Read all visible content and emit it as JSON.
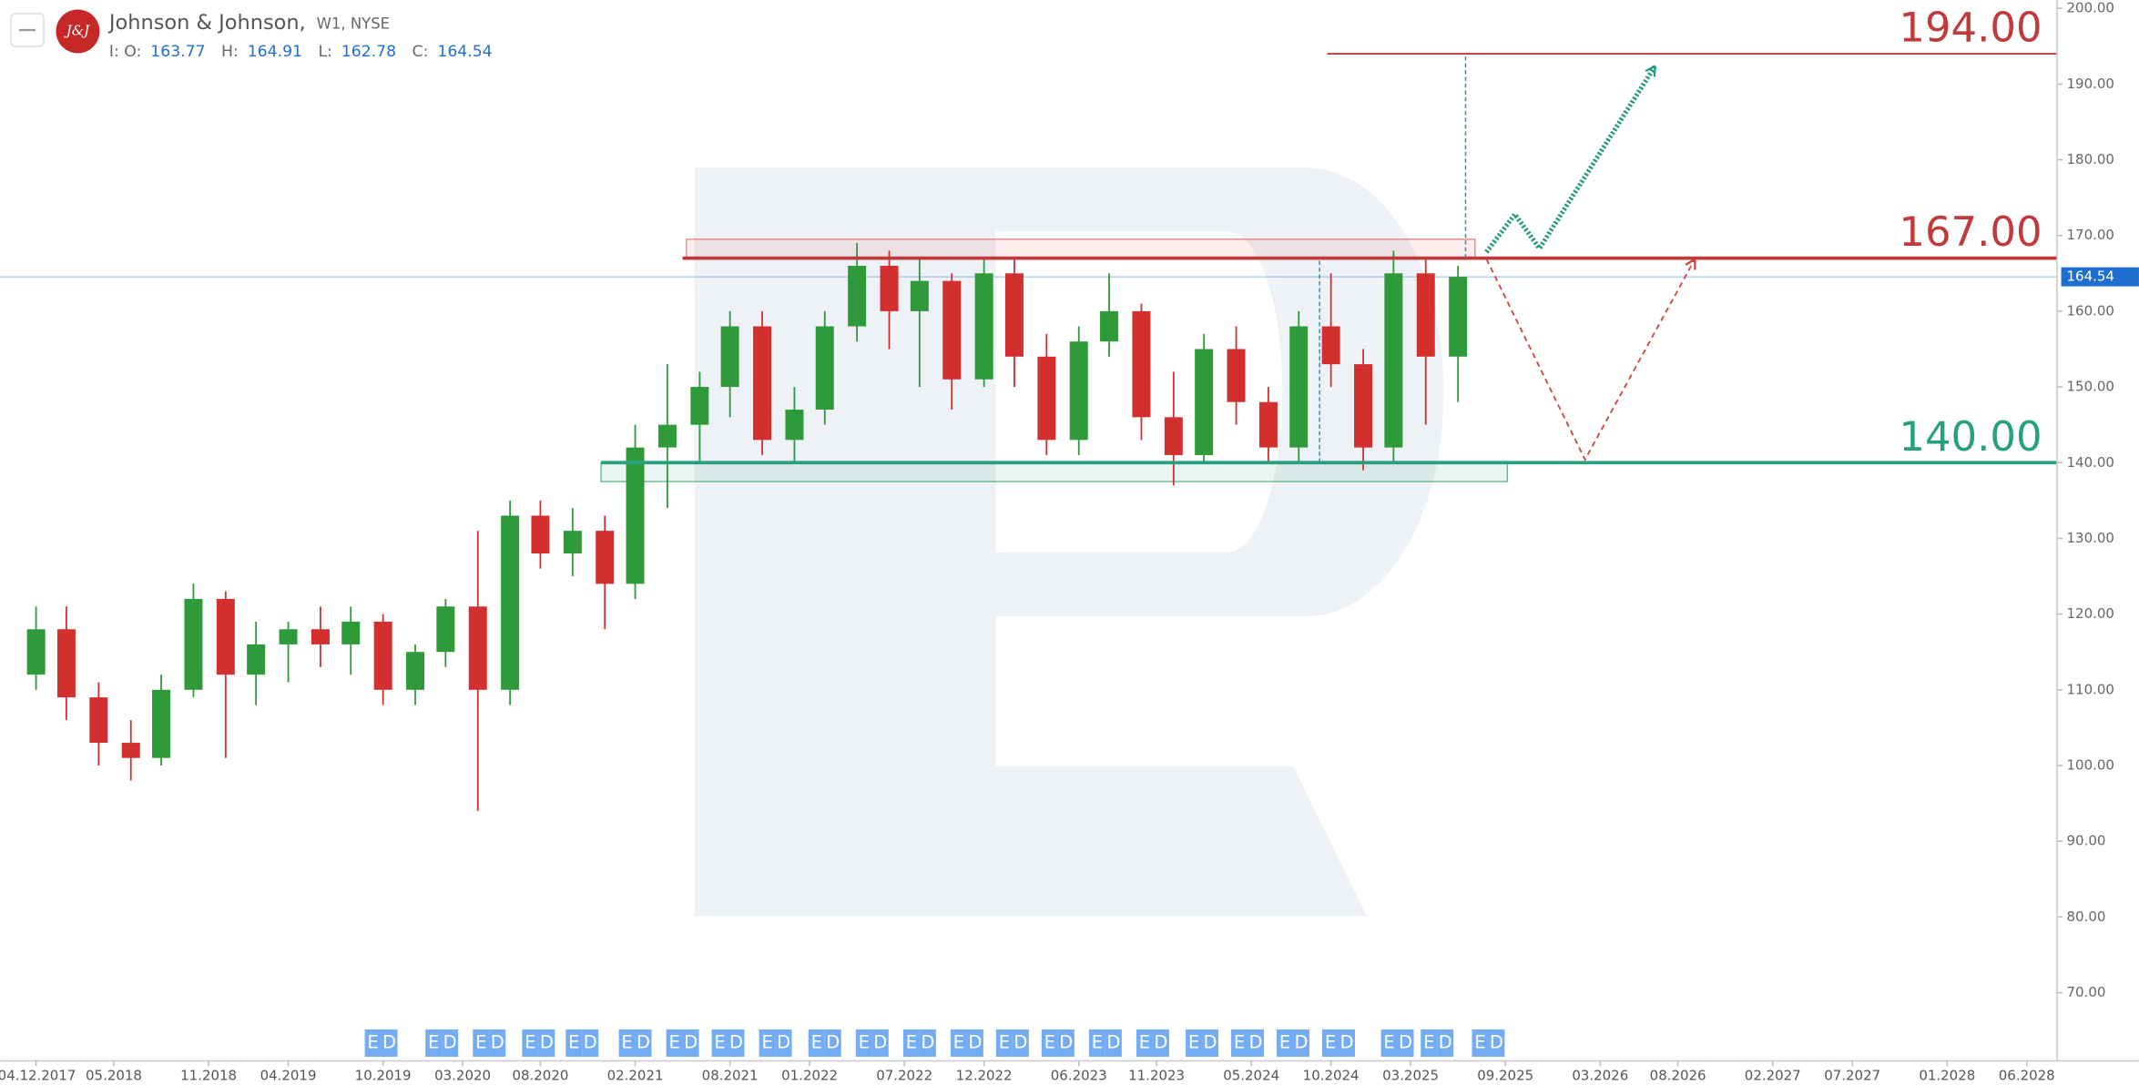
{
  "chart_data": {
    "type": "candlestick",
    "title": "Johnson & Johnson,",
    "subtitle": "W1, NYSE",
    "logo_text": "J&J",
    "ohlc_header": {
      "open_label": "I: O:",
      "open": 163.77,
      "high_label": "H:",
      "high": 164.91,
      "low_label": "L:",
      "low": 162.78,
      "close_label": "C:",
      "close": 164.54
    },
    "current_price": 164.54,
    "xlim": [
      2017.73,
      2028.58
    ],
    "ylim": [
      61,
      201.1
    ],
    "yticks": [
      {
        "value": 200,
        "label": "200.00"
      },
      {
        "value": 190,
        "label": "190.00"
      },
      {
        "value": 180,
        "label": "180.00"
      },
      {
        "value": 170,
        "label": "170.00"
      },
      {
        "value": 160,
        "label": "160.00"
      },
      {
        "value": 150,
        "label": "150.00"
      },
      {
        "value": 140,
        "label": "140.00"
      },
      {
        "value": 130,
        "label": "130.00"
      },
      {
        "value": 120,
        "label": "120.00"
      },
      {
        "value": 110,
        "label": "110.00"
      },
      {
        "value": 100,
        "label": "100.00"
      },
      {
        "value": 90,
        "label": "90.00"
      },
      {
        "value": 80,
        "label": "80.00"
      },
      {
        "value": 70,
        "label": "70.00"
      }
    ],
    "xticks": [
      {
        "value": 2017.92,
        "label": "04.12.2017"
      },
      {
        "value": 2018.33,
        "label": "05.2018"
      },
      {
        "value": 2018.83,
        "label": "11.2018"
      },
      {
        "value": 2019.25,
        "label": "04.2019"
      },
      {
        "value": 2019.75,
        "label": "10.2019"
      },
      {
        "value": 2020.17,
        "label": "03.2020"
      },
      {
        "value": 2020.58,
        "label": "08.2020"
      },
      {
        "value": 2021.08,
        "label": "02.2021"
      },
      {
        "value": 2021.58,
        "label": "08.2021"
      },
      {
        "value": 2022.0,
        "label": "01.2022"
      },
      {
        "value": 2022.5,
        "label": "07.2022"
      },
      {
        "value": 2022.92,
        "label": "12.2022"
      },
      {
        "value": 2023.42,
        "label": "06.2023"
      },
      {
        "value": 2023.83,
        "label": "11.2023"
      },
      {
        "value": 2024.33,
        "label": "05.2024"
      },
      {
        "value": 2024.75,
        "label": "10.2024"
      },
      {
        "value": 2025.17,
        "label": "03.2025"
      },
      {
        "value": 2025.67,
        "label": "09.2025"
      },
      {
        "value": 2026.17,
        "label": "03.2026"
      },
      {
        "value": 2026.58,
        "label": "08.2026"
      },
      {
        "value": 2027.08,
        "label": "02.2027"
      },
      {
        "value": 2027.5,
        "label": "07.2027"
      },
      {
        "value": 2028.0,
        "label": "01.2028"
      },
      {
        "value": 2028.42,
        "label": "06.2028"
      }
    ],
    "up_color": "#2e9a3a",
    "down_color": "#d32f2f",
    "x": [
      2017.92,
      2018.08,
      2018.25,
      2018.42,
      2018.58,
      2018.75,
      2018.92,
      2019.08,
      2019.25,
      2019.42,
      2019.58,
      2019.75,
      2019.92,
      2020.08,
      2020.25,
      2020.42,
      2020.58,
      2020.75,
      2020.92,
      2021.08,
      2021.25,
      2021.42,
      2021.58,
      2021.75,
      2021.92,
      2022.08,
      2022.25,
      2022.42,
      2022.58,
      2022.75,
      2022.92,
      2023.08,
      2023.25,
      2023.42,
      2023.58,
      2023.75,
      2023.92,
      2024.08,
      2024.25,
      2024.42,
      2024.58,
      2024.75,
      2024.92,
      2025.08,
      2025.25,
      2025.42
    ],
    "candles": [
      [
        112,
        121,
        110,
        118
      ],
      [
        118,
        121,
        106,
        109
      ],
      [
        109,
        111,
        100,
        103
      ],
      [
        103,
        106,
        98,
        101
      ],
      [
        101,
        112,
        100,
        110
      ],
      [
        110,
        124,
        109,
        122
      ],
      [
        122,
        123,
        101,
        112
      ],
      [
        112,
        119,
        108,
        116
      ],
      [
        116,
        119,
        111,
        118
      ],
      [
        118,
        121,
        113,
        116
      ],
      [
        116,
        121,
        112,
        119
      ],
      [
        119,
        120,
        108,
        110
      ],
      [
        110,
        116,
        108,
        115
      ],
      [
        115,
        122,
        113,
        121
      ],
      [
        121,
        131,
        94,
        110
      ],
      [
        110,
        135,
        108,
        133
      ],
      [
        133,
        135,
        126,
        128
      ],
      [
        128,
        134,
        125,
        131
      ],
      [
        131,
        133,
        118,
        124
      ],
      [
        124,
        145,
        122,
        142
      ],
      [
        142,
        153,
        134,
        145
      ],
      [
        145,
        152,
        140,
        150
      ],
      [
        150,
        160,
        146,
        158
      ],
      [
        158,
        160,
        141,
        143
      ],
      [
        143,
        150,
        140,
        147
      ],
      [
        147,
        160,
        145,
        158
      ],
      [
        158,
        169,
        156,
        166
      ],
      [
        166,
        168,
        155,
        160
      ],
      [
        160,
        167,
        150,
        164
      ],
      [
        164,
        165,
        147,
        151
      ],
      [
        151,
        167,
        150,
        165
      ],
      [
        165,
        167,
        150,
        154
      ],
      [
        154,
        157,
        141,
        143
      ],
      [
        143,
        158,
        141,
        156
      ],
      [
        156,
        165,
        154,
        160
      ],
      [
        160,
        161,
        143,
        146
      ],
      [
        146,
        152,
        137,
        141
      ],
      [
        141,
        157,
        140,
        155
      ],
      [
        155,
        158,
        145,
        148
      ],
      [
        148,
        150,
        140,
        142
      ],
      [
        142,
        160,
        140,
        158
      ],
      [
        158,
        165,
        150,
        153
      ],
      [
        153,
        155,
        139,
        142
      ],
      [
        142,
        168,
        140,
        165
      ],
      [
        165,
        167,
        145,
        154
      ],
      [
        154,
        166,
        148,
        164.54
      ]
    ],
    "levels": [
      {
        "value": 194,
        "label": "194.00",
        "color": "#c0393b",
        "from": 2024.73
      },
      {
        "value": 167,
        "label": "167.00",
        "color": "#c0393b",
        "from": 2021.33
      },
      {
        "value": 140,
        "label": "140.00",
        "color": "#26a07e",
        "from": 2020.9
      }
    ],
    "zones": [
      {
        "x": [
          2021.35,
          2025.51
        ],
        "y": [
          167,
          169.5
        ],
        "color": "#e57373"
      },
      {
        "x": [
          2020.9,
          2025.68
        ],
        "y": [
          137.5,
          140
        ],
        "color": "#4caf80"
      }
    ],
    "measures": [
      {
        "x": 2025.46,
        "y": [
          167,
          194
        ]
      },
      {
        "x": 2024.69,
        "y": [
          140,
          167
        ]
      }
    ],
    "forecasts": [
      {
        "x": [
          2025.57,
          2025.72,
          2025.85,
          2026.46
        ],
        "y": [
          167.8,
          172.8,
          168.3,
          192.4
        ],
        "color": "#1f9a78"
      },
      {
        "x": [
          2025.57,
          2026.09,
          2026.67
        ],
        "y": [
          166.9,
          140.4,
          166.9
        ],
        "color": "#d04040"
      }
    ],
    "events": {
      "labels": [
        "E",
        "D"
      ],
      "x": [
        2019.74,
        2020.06,
        2020.31,
        2020.57,
        2020.8,
        2021.08,
        2021.33,
        2021.57,
        2021.82,
        2022.08,
        2022.33,
        2022.58,
        2022.83,
        2023.07,
        2023.31,
        2023.56,
        2023.81,
        2024.07,
        2024.31,
        2024.55,
        2024.79,
        2025.1,
        2025.31,
        2025.58
      ]
    }
  }
}
